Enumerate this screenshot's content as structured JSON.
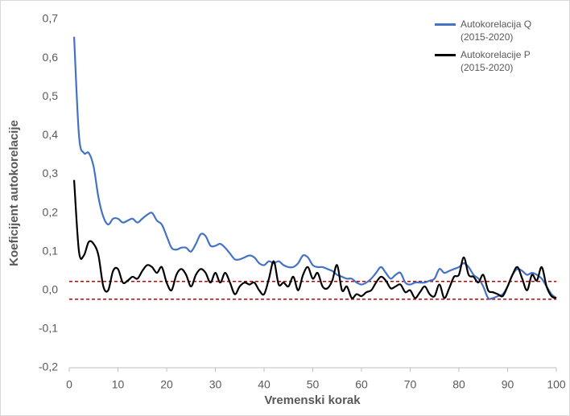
{
  "chart_data": {
    "type": "line",
    "x_label": "Vremenski korak",
    "y_label": "Koeficijent autokorelacije",
    "x": [
      1,
      2,
      3,
      4,
      5,
      6,
      7,
      8,
      9,
      10,
      11,
      12,
      13,
      14,
      15,
      16,
      17,
      18,
      19,
      20,
      21,
      22,
      23,
      24,
      25,
      26,
      27,
      28,
      29,
      30,
      31,
      32,
      33,
      34,
      35,
      36,
      37,
      38,
      39,
      40,
      41,
      42,
      43,
      44,
      45,
      46,
      47,
      48,
      49,
      50,
      51,
      52,
      53,
      54,
      55,
      56,
      57,
      58,
      59,
      60,
      61,
      62,
      63,
      64,
      65,
      66,
      67,
      68,
      69,
      70,
      71,
      72,
      73,
      74,
      75,
      76,
      77,
      78,
      79,
      80,
      81,
      82,
      83,
      84,
      85,
      86,
      87,
      88,
      89,
      90,
      91,
      92,
      93,
      94,
      95,
      96,
      97,
      98,
      99,
      100
    ],
    "series": [
      {
        "name": "Autokorelacija Q (2015-2020)",
        "color": "#4472c4",
        "values": [
          0.655,
          0.4,
          0.355,
          0.355,
          0.32,
          0.24,
          0.19,
          0.17,
          0.185,
          0.185,
          0.175,
          0.18,
          0.185,
          0.175,
          0.185,
          0.195,
          0.2,
          0.18,
          0.17,
          0.14,
          0.11,
          0.105,
          0.11,
          0.11,
          0.1,
          0.12,
          0.145,
          0.14,
          0.115,
          0.115,
          0.12,
          0.11,
          0.095,
          0.08,
          0.08,
          0.085,
          0.09,
          0.085,
          0.07,
          0.065,
          0.075,
          0.07,
          0.075,
          0.065,
          0.06,
          0.06,
          0.07,
          0.09,
          0.085,
          0.065,
          0.06,
          0.06,
          0.055,
          0.05,
          0.04,
          0.035,
          0.03,
          0.03,
          0.02,
          0.015,
          0.02,
          0.03,
          0.045,
          0.06,
          0.045,
          0.03,
          0.04,
          0.045,
          0.02,
          0.015,
          0.02,
          0.02,
          0.02,
          0.025,
          0.03,
          0.055,
          0.045,
          0.05,
          0.055,
          0.06,
          0.07,
          0.06,
          0.04,
          0.03,
          0.01,
          -0.02,
          -0.02,
          -0.015,
          -0.01,
          0.01,
          0.04,
          0.055,
          0.05,
          0.04,
          0.045,
          0.04,
          0.03,
          0.01,
          -0.01,
          -0.02
        ]
      },
      {
        "name": "Autokorelacije P (2015-2020)",
        "color": "#000000",
        "values": [
          0.285,
          0.1,
          0.09,
          0.125,
          0.12,
          0.09,
          0.01,
          0.0,
          0.05,
          0.055,
          0.02,
          0.025,
          0.035,
          0.03,
          0.05,
          0.065,
          0.06,
          0.045,
          0.06,
          0.02,
          0.0,
          0.04,
          0.055,
          0.04,
          0.01,
          0.04,
          0.055,
          0.045,
          0.02,
          0.045,
          0.02,
          0.045,
          0.02,
          -0.01,
          0.01,
          0.02,
          0.015,
          0.02,
          0.0,
          -0.01,
          0.03,
          0.075,
          0.015,
          0.02,
          0.01,
          0.035,
          0.0,
          0.04,
          0.06,
          0.03,
          0.045,
          0.01,
          0.005,
          0.025,
          0.065,
          0.0,
          0.01,
          -0.02,
          -0.01,
          -0.015,
          -0.005,
          0.0,
          0.02,
          0.035,
          0.025,
          0.005,
          0.01,
          0.015,
          -0.005,
          0.0,
          -0.02,
          -0.005,
          0.01,
          -0.01,
          -0.015,
          0.015,
          -0.02,
          0.005,
          0.035,
          0.04,
          0.085,
          0.04,
          0.035,
          0.02,
          0.04,
          0.0,
          -0.005,
          -0.01,
          -0.015,
          0.01,
          0.04,
          0.06,
          0.03,
          0.0,
          0.04,
          0.025,
          0.06,
          0.01,
          -0.015,
          -0.02
        ]
      }
    ],
    "reference_lines": [
      {
        "value": 0.023,
        "color": "#c00000"
      },
      {
        "value": -0.023,
        "color": "#c00000"
      }
    ],
    "xlim": [
      0,
      100
    ],
    "xticks": [
      0,
      10,
      20,
      30,
      40,
      50,
      60,
      70,
      80,
      90,
      100
    ],
    "ylim": [
      -0.2,
      0.7
    ],
    "yticks": [
      {
        "value": -0.2,
        "label": "-0,2"
      },
      {
        "value": -0.1,
        "label": "-0,1"
      },
      {
        "value": 0,
        "label": "0,0"
      },
      {
        "value": 0.1,
        "label": "0,1"
      },
      {
        "value": 0.2,
        "label": "0,2"
      },
      {
        "value": 0.3,
        "label": "0,3"
      },
      {
        "value": 0.4,
        "label": "0,4"
      },
      {
        "value": 0.5,
        "label": "0,5"
      },
      {
        "value": 0.6,
        "label": "0,6"
      },
      {
        "value": 0.7,
        "label": "0,7"
      }
    ],
    "grid": false,
    "legend_position": "upper-right"
  }
}
